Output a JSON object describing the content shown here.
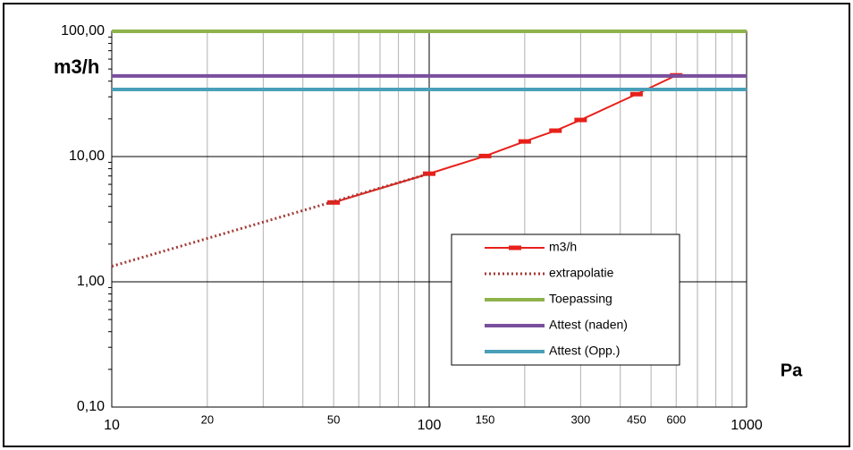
{
  "chart_data": {
    "type": "line",
    "y_label": "m3/h",
    "x_label": "Pa",
    "x_log": true,
    "y_log": true,
    "xlim": [
      10,
      1000
    ],
    "ylim": [
      0.1,
      100
    ],
    "xticks": [
      10,
      20,
      50,
      100,
      150,
      300,
      450,
      600,
      1000
    ],
    "xgrid": [
      10,
      20,
      30,
      40,
      50,
      60,
      70,
      80,
      90,
      100,
      200,
      300,
      400,
      500,
      600,
      700,
      800,
      900,
      1000
    ],
    "yticks": [
      {
        "value": 100,
        "label": "100,00"
      },
      {
        "value": 10,
        "label": "10,00"
      },
      {
        "value": 1,
        "label": "1,00"
      },
      {
        "value": 0.1,
        "label": "0,10"
      }
    ],
    "grid": true,
    "legend": "lower right",
    "series": [
      {
        "name": "m3/h",
        "color": "#e8201a",
        "style": "solid-marker",
        "x": [
          50,
          100,
          150,
          200,
          250,
          300,
          450,
          600
        ],
        "values": [
          4.3,
          7.3,
          10.1,
          13.2,
          16.1,
          19.6,
          31.5,
          44.5
        ]
      },
      {
        "name": "extrapolatie",
        "color": "#a33a36",
        "style": "dotted",
        "x": [
          10,
          100
        ],
        "values": [
          1.33,
          7.3
        ]
      },
      {
        "name": "Toepassing",
        "color": "#8fb24c",
        "style": "thick",
        "x": [
          10,
          1000
        ],
        "values": [
          100,
          100
        ]
      },
      {
        "name": "Attest (naden)",
        "color": "#7a4f9c",
        "style": "thick",
        "x": [
          10,
          1000
        ],
        "values": [
          44,
          44
        ]
      },
      {
        "name": "Attest (Opp.)",
        "color": "#4aa0b8",
        "style": "thick",
        "x": [
          10,
          1000
        ],
        "values": [
          34.3,
          34.3
        ]
      }
    ]
  }
}
